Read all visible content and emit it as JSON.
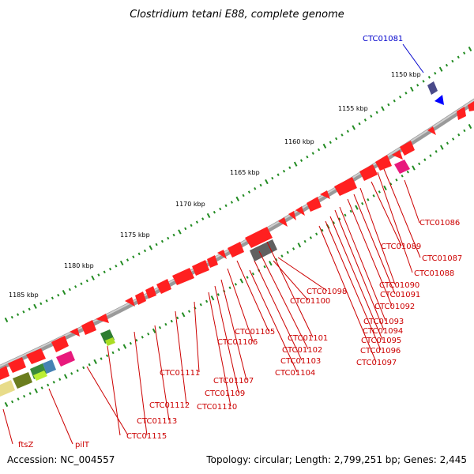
{
  "title": "Clostridium tetani E88, complete genome",
  "footer": {
    "accession": "Accession: NC_004557",
    "topology": "Topology: circular; Length: 2,799,251 bp; Genes: 2,445"
  },
  "scale_labels": [
    "1150 kbp",
    "1155 kbp",
    "1160 kbp",
    "1165 kbp",
    "1170 kbp",
    "1175 kbp",
    "1180 kbp",
    "1185 kbp"
  ],
  "highlighted_gene": "CTC01081",
  "gene_labels": [
    "CTC01086",
    "CTC01087",
    "CTC01088",
    "CTC01089",
    "CTC01090",
    "CTC01091",
    "CTC01092",
    "CTC01093",
    "CTC01094",
    "CTC01095",
    "CTC01096",
    "CTC01097",
    "CTC01098",
    "CTC01100",
    "CTC01101",
    "CTC01102",
    "CTC01103",
    "CTC01104",
    "CTC01105",
    "CTC01106",
    "CTC01107",
    "CTC01109",
    "CTC01110",
    "CTC01111",
    "CTC01112",
    "CTC01113",
    "CTC01115",
    "ftsZ",
    "pilT"
  ],
  "colors": {
    "backbone": "#8a8a8a",
    "gene": "#ff0000",
    "label": "#cc0000",
    "highlight": "#0000cc",
    "tick": "#228b22"
  }
}
